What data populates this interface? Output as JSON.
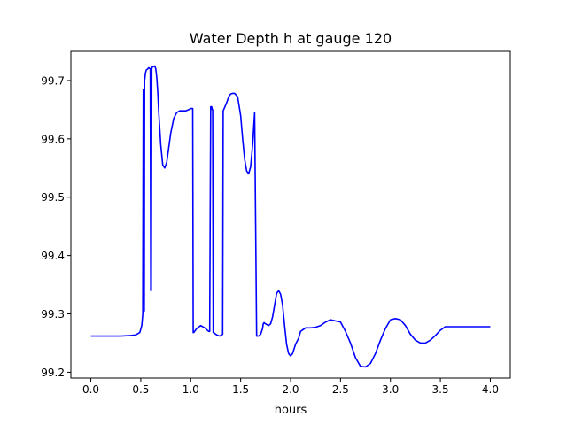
{
  "chart_data": {
    "type": "line",
    "title": "Water Depth h at gauge 120",
    "xlabel": "hours",
    "ylabel": "",
    "xlim": [
      -0.2,
      4.2
    ],
    "ylim": [
      99.19,
      99.75
    ],
    "xticks": [
      0.0,
      0.5,
      1.0,
      1.5,
      2.0,
      2.5,
      3.0,
      3.5,
      4.0
    ],
    "xtick_labels": [
      "0.0",
      "0.5",
      "1.0",
      "1.5",
      "2.0",
      "2.5",
      "3.0",
      "3.5",
      "4.0"
    ],
    "yticks": [
      99.2,
      99.3,
      99.4,
      99.5,
      99.6,
      99.7
    ],
    "ytick_labels": [
      "99.2",
      "99.3",
      "99.4",
      "99.5",
      "99.6",
      "99.7"
    ],
    "grid": false,
    "legend": "none",
    "color": "#0000ff",
    "series": [
      {
        "x": [
          0.0,
          0.1,
          0.2,
          0.3,
          0.4,
          0.45,
          0.49,
          0.51,
          0.52,
          0.525,
          0.53,
          0.535,
          0.538,
          0.542,
          0.545,
          0.548,
          0.55,
          0.555,
          0.57,
          0.58,
          0.595,
          0.6,
          0.605,
          0.61,
          0.615,
          0.63,
          0.64,
          0.65,
          0.66,
          0.67,
          0.68,
          0.7,
          0.72,
          0.74,
          0.76,
          0.78,
          0.8,
          0.83,
          0.86,
          0.89,
          0.92,
          0.95,
          0.98,
          1.0,
          1.02,
          1.025,
          1.03,
          1.06,
          1.1,
          1.14,
          1.18,
          1.19,
          1.2,
          1.205,
          1.21,
          1.215,
          1.22,
          1.225,
          1.23,
          1.26,
          1.29,
          1.31,
          1.32,
          1.325,
          1.33,
          1.36,
          1.38,
          1.4,
          1.42,
          1.44,
          1.47,
          1.5,
          1.52,
          1.54,
          1.56,
          1.58,
          1.6,
          1.62,
          1.64,
          1.66,
          1.68,
          1.7,
          1.72,
          1.725,
          1.73,
          1.735,
          1.74,
          1.76,
          1.78,
          1.8,
          1.82,
          1.84,
          1.86,
          1.88,
          1.9,
          1.92,
          1.94,
          1.96,
          1.98,
          2.0,
          2.02,
          2.05,
          2.08,
          2.1,
          2.15,
          2.2,
          2.25,
          2.3,
          2.35,
          2.4,
          2.5,
          2.55,
          2.6,
          2.65,
          2.7,
          2.75,
          2.8,
          2.85,
          2.9,
          2.95,
          3.0,
          3.05,
          3.1,
          3.15,
          3.2,
          3.25,
          3.3,
          3.35,
          3.4,
          3.45,
          3.5,
          3.55,
          3.6,
          3.65,
          3.7,
          3.75,
          3.8,
          3.85,
          3.9,
          3.95,
          4.0
        ],
        "y": [
          99.262,
          99.262,
          99.262,
          99.262,
          99.263,
          99.264,
          99.268,
          99.28,
          99.3,
          99.685,
          99.62,
          99.305,
          99.7,
          99.705,
          99.71,
          99.713,
          99.715,
          99.718,
          99.72,
          99.722,
          99.72,
          99.34,
          99.34,
          99.72,
          99.723,
          99.724,
          99.725,
          99.72,
          99.705,
          99.68,
          99.645,
          99.59,
          99.555,
          99.55,
          99.56,
          99.585,
          99.61,
          99.635,
          99.645,
          99.648,
          99.648,
          99.648,
          99.65,
          99.652,
          99.652,
          99.268,
          99.268,
          99.275,
          99.28,
          99.276,
          99.27,
          99.27,
          99.655,
          99.655,
          99.655,
          99.65,
          99.65,
          99.268,
          99.268,
          99.264,
          99.262,
          99.264,
          99.265,
          99.648,
          99.65,
          99.662,
          99.672,
          99.677,
          99.678,
          99.678,
          99.672,
          99.64,
          99.6,
          99.565,
          99.545,
          99.54,
          99.552,
          99.59,
          99.645,
          99.262,
          99.262,
          99.265,
          99.275,
          99.282,
          99.284,
          99.285,
          99.284,
          99.282,
          99.28,
          99.283,
          99.295,
          99.315,
          99.335,
          99.34,
          99.334,
          99.315,
          99.28,
          99.248,
          99.232,
          99.228,
          99.232,
          99.248,
          99.258,
          99.27,
          99.276,
          99.276,
          99.277,
          99.28,
          99.286,
          99.29,
          99.286,
          99.27,
          99.25,
          99.225,
          99.21,
          99.209,
          99.215,
          99.232,
          99.255,
          99.275,
          99.29,
          99.292,
          99.29,
          99.28,
          99.265,
          99.255,
          99.25,
          99.25,
          99.255,
          99.263,
          99.272,
          99.278,
          99.278,
          99.278,
          99.278,
          99.278,
          99.278,
          99.278,
          99.278,
          99.278,
          99.278
        ]
      }
    ]
  }
}
